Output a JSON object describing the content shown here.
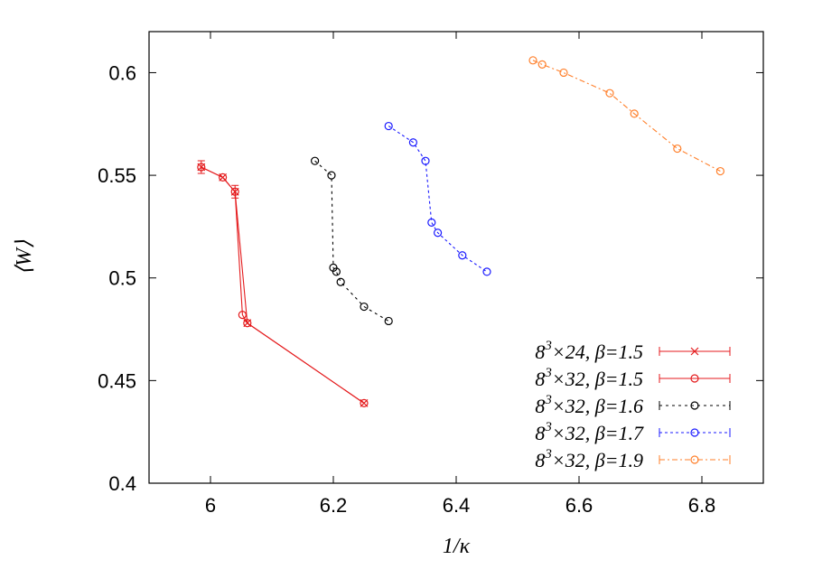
{
  "chart_data": {
    "type": "scatter",
    "xlabel": "1/κ",
    "ylabel": "⟨W⟩",
    "xlim": [
      5.9,
      6.9
    ],
    "ylim": [
      0.4,
      0.62
    ],
    "xticks": [
      6.0,
      6.2,
      6.4,
      6.6,
      6.8
    ],
    "xtick_labels": [
      "6",
      "6.2",
      "6.4",
      "6.6",
      "6.8"
    ],
    "yticks": [
      0.4,
      0.45,
      0.5,
      0.55,
      0.6
    ],
    "ytick_labels": [
      "0.4",
      "0.45",
      "0.5",
      "0.55",
      "0.6"
    ],
    "grid": false,
    "legend_position": "bottom-right",
    "series": [
      {
        "name": "8³×24, β=1.5",
        "legend_main": "8",
        "legend_sup": "3",
        "legend_rest": "×24, β=1.5",
        "color": "#e41a1c",
        "marker": "cross",
        "dash": "none",
        "x": [
          5.985,
          6.02,
          6.04,
          6.06,
          6.25
        ],
        "y": [
          0.554,
          0.549,
          0.542,
          0.478,
          0.439
        ]
      },
      {
        "name": "8³×32, β=1.5",
        "legend_main": "8",
        "legend_sup": "3",
        "legend_rest": "×32, β=1.5",
        "color": "#e41a1c",
        "marker": "circle",
        "dash": "none",
        "x": [
          5.985,
          6.02,
          6.04,
          6.052,
          6.06,
          6.25
        ],
        "y": [
          0.554,
          0.549,
          0.542,
          0.482,
          0.478,
          0.439
        ]
      },
      {
        "name": "8³×32, β=1.6",
        "legend_main": "8",
        "legend_sup": "3",
        "legend_rest": "×32, β=1.6",
        "color": "#000000",
        "marker": "circle",
        "dash": "3,4",
        "x": [
          6.17,
          6.197,
          6.2,
          6.205,
          6.212,
          6.25,
          6.29
        ],
        "y": [
          0.557,
          0.55,
          0.505,
          0.503,
          0.498,
          0.486,
          0.479
        ]
      },
      {
        "name": "8³×32, β=1.7",
        "legend_main": "8",
        "legend_sup": "3",
        "legend_rest": "×32, β=1.7",
        "color": "#1a1aff",
        "marker": "circle",
        "dash": "3,3",
        "x": [
          6.29,
          6.33,
          6.35,
          6.36,
          6.37,
          6.41,
          6.45
        ],
        "y": [
          0.574,
          0.566,
          0.557,
          0.527,
          0.522,
          0.511,
          0.503
        ]
      },
      {
        "name": "8³×32, β=1.9",
        "legend_main": "8",
        "legend_sup": "3",
        "legend_rest": "×32, β=1.9",
        "color": "#ff7f2a",
        "marker": "circle",
        "dash": "6,3,2,3",
        "x": [
          6.525,
          6.54,
          6.575,
          6.65,
          6.69,
          6.76,
          6.83
        ],
        "y": [
          0.606,
          0.604,
          0.6,
          0.59,
          0.58,
          0.563,
          0.552
        ]
      }
    ]
  }
}
